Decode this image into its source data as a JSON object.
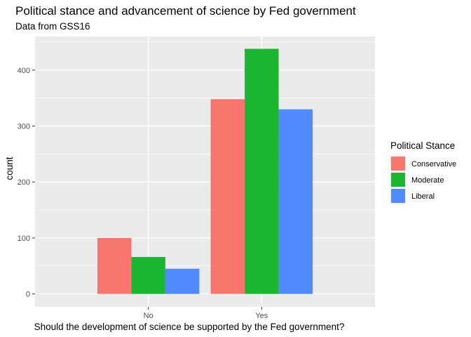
{
  "chart_data": {
    "type": "bar",
    "title": "Political stance and advancement of science by Fed government",
    "subtitle": "Data from GSS16",
    "xlabel": "Should the development of science be supported by the Fed government?",
    "ylabel": "count",
    "categories": [
      "No",
      "Yes"
    ],
    "series": [
      {
        "name": "Conservative",
        "values": [
          100,
          348
        ],
        "color": "#F8766D"
      },
      {
        "name": "Moderate",
        "values": [
          66,
          438
        ],
        "color": "#1BB631"
      },
      {
        "name": "Liberal",
        "values": [
          45,
          330
        ],
        "color": "#528BFF"
      }
    ],
    "yticks": [
      0,
      100,
      200,
      300,
      400
    ],
    "ylim": [
      -23,
      460
    ],
    "grid": true,
    "panel_background": "#EBEBEB",
    "legend": {
      "title": "Political Stance",
      "placement": "right"
    }
  }
}
